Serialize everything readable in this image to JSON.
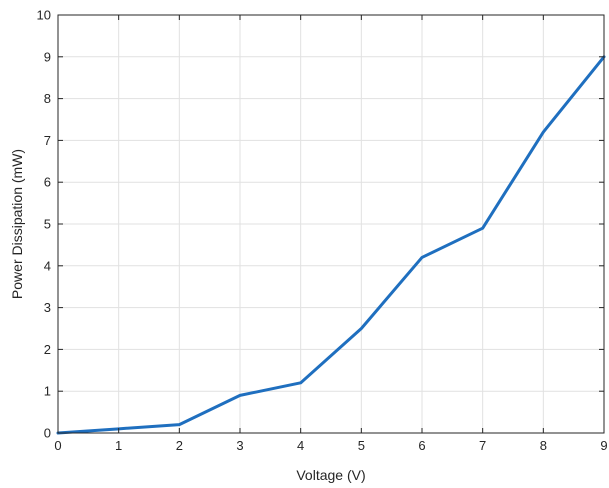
{
  "chart_data": {
    "type": "line",
    "xlabel": "Voltage (V)",
    "ylabel": "Power Dissipation (mW)",
    "xlim": [
      0,
      9
    ],
    "ylim": [
      0,
      10
    ],
    "xticks": [
      0,
      1,
      2,
      3,
      4,
      5,
      6,
      7,
      8,
      9
    ],
    "yticks": [
      0,
      1,
      2,
      3,
      4,
      5,
      6,
      7,
      8,
      9,
      10
    ],
    "grid": true,
    "x": [
      0,
      1,
      2,
      3,
      4,
      5,
      6,
      7,
      8,
      9
    ],
    "series": [
      {
        "values": [
          0,
          0.1,
          0.2,
          0.9,
          1.2,
          2.5,
          4.2,
          4.9,
          7.2,
          9.0
        ],
        "color": "#1f6fbf"
      }
    ]
  }
}
